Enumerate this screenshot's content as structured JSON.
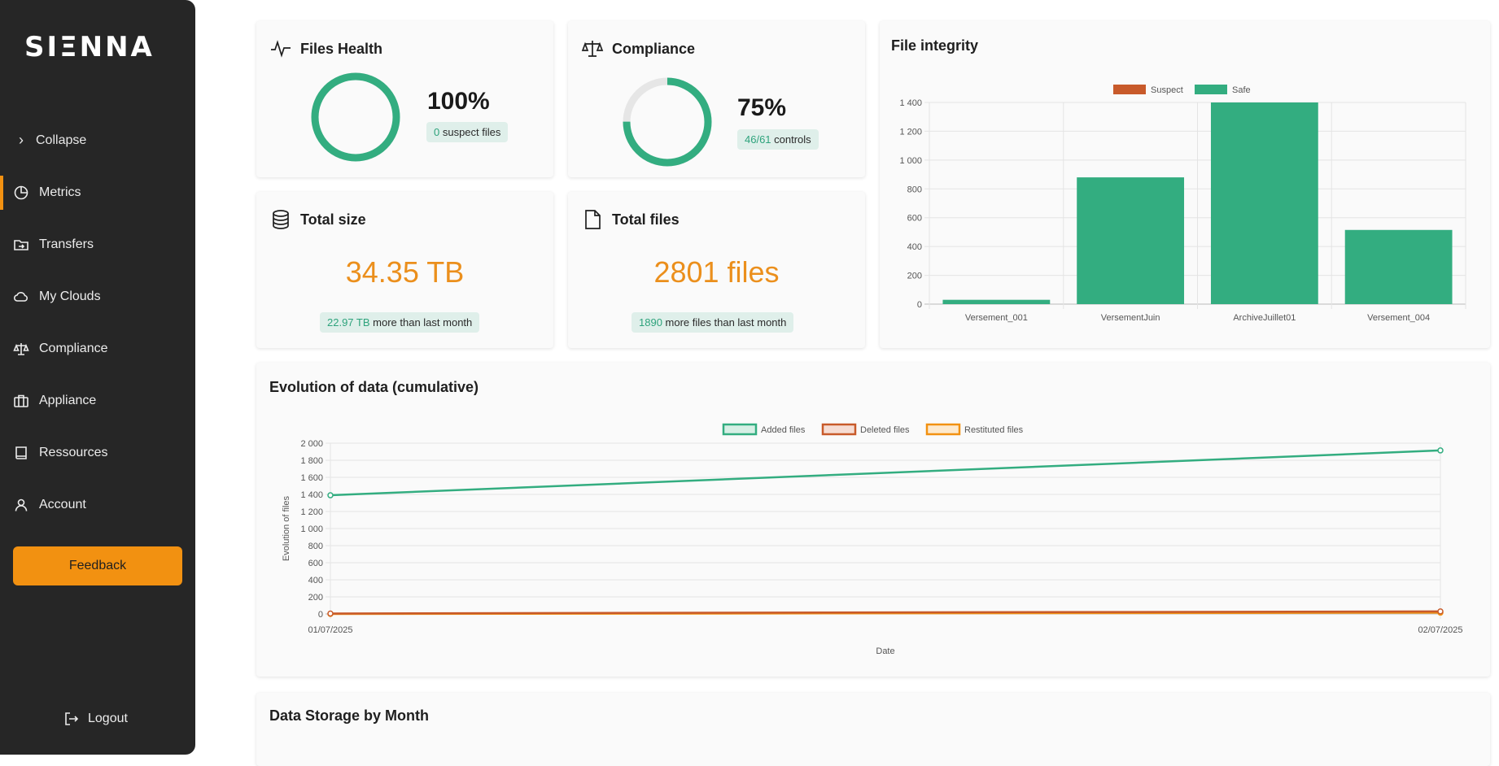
{
  "sidebar": {
    "logo": "SIΞNNA",
    "collapse_label": "Collapse",
    "items": [
      {
        "label": "Metrics",
        "icon": "pie-chart-icon"
      },
      {
        "label": "Transfers",
        "icon": "folder-transfer-icon"
      },
      {
        "label": "My Clouds",
        "icon": "cloud-icon"
      },
      {
        "label": "Compliance",
        "icon": "scale-icon"
      },
      {
        "label": "Appliance",
        "icon": "briefcase-icon"
      },
      {
        "label": "Ressources",
        "icon": "book-icon"
      },
      {
        "label": "Account",
        "icon": "user-icon"
      }
    ],
    "feedback_label": "Feedback",
    "logout_label": "Logout"
  },
  "cards": {
    "files_health": {
      "title": "Files Health",
      "percent": "100%",
      "ratio": 1.0,
      "pill_value": "0",
      "pill_text": " suspect files"
    },
    "compliance": {
      "title": "Compliance",
      "percent": "75%",
      "ratio": 0.75,
      "pill_value": "46/61",
      "pill_text": " controls"
    },
    "total_size": {
      "title": "Total size",
      "value": "34.35 TB",
      "pill_value": "22.97 TB",
      "pill_text": " more than last month"
    },
    "total_files": {
      "title": "Total files",
      "value": "2801 files",
      "pill_value": "1890",
      "pill_text": " more files than last month"
    }
  },
  "integrity_chart": {
    "title": "File integrity",
    "chart_data": {
      "type": "bar",
      "categories": [
        "Versement_001",
        "VersementJuin",
        "ArchiveJuillet01",
        "Versement_004"
      ],
      "series": [
        {
          "name": "Suspect",
          "color": "#c85a2a",
          "values": [
            0,
            0,
            0,
            0
          ]
        },
        {
          "name": "Safe",
          "color": "#33ad80",
          "values": [
            30,
            880,
            1400,
            515
          ]
        }
      ],
      "ylim": [
        0,
        1400
      ],
      "yticks": [
        "0",
        "200",
        "400",
        "600",
        "800",
        "1 000",
        "1 200",
        "1 400"
      ],
      "legend": "top-center"
    }
  },
  "evolution_chart": {
    "title": "Evolution of data (cumulative)",
    "chart_data": {
      "type": "line",
      "x": [
        "01/07/2025",
        "02/07/2025"
      ],
      "series": [
        {
          "name": "Added files",
          "color": "#33ad80",
          "values": [
            1390,
            1915
          ]
        },
        {
          "name": "Deleted files",
          "color": "#c85a2a",
          "values": [
            5,
            30
          ]
        },
        {
          "name": "Restituted files",
          "color": "#f29111",
          "values": [
            0,
            15
          ]
        }
      ],
      "ylim": [
        0,
        2000
      ],
      "yticks": [
        "0",
        "200",
        "400",
        "600",
        "800",
        "1 000",
        "1 200",
        "1 400",
        "1 600",
        "1 800",
        "2 000"
      ],
      "xlabel": "Date",
      "ylabel": "Evolution of files",
      "legend": "top-center"
    }
  },
  "storage_chart": {
    "title": "Data Storage by Month"
  }
}
